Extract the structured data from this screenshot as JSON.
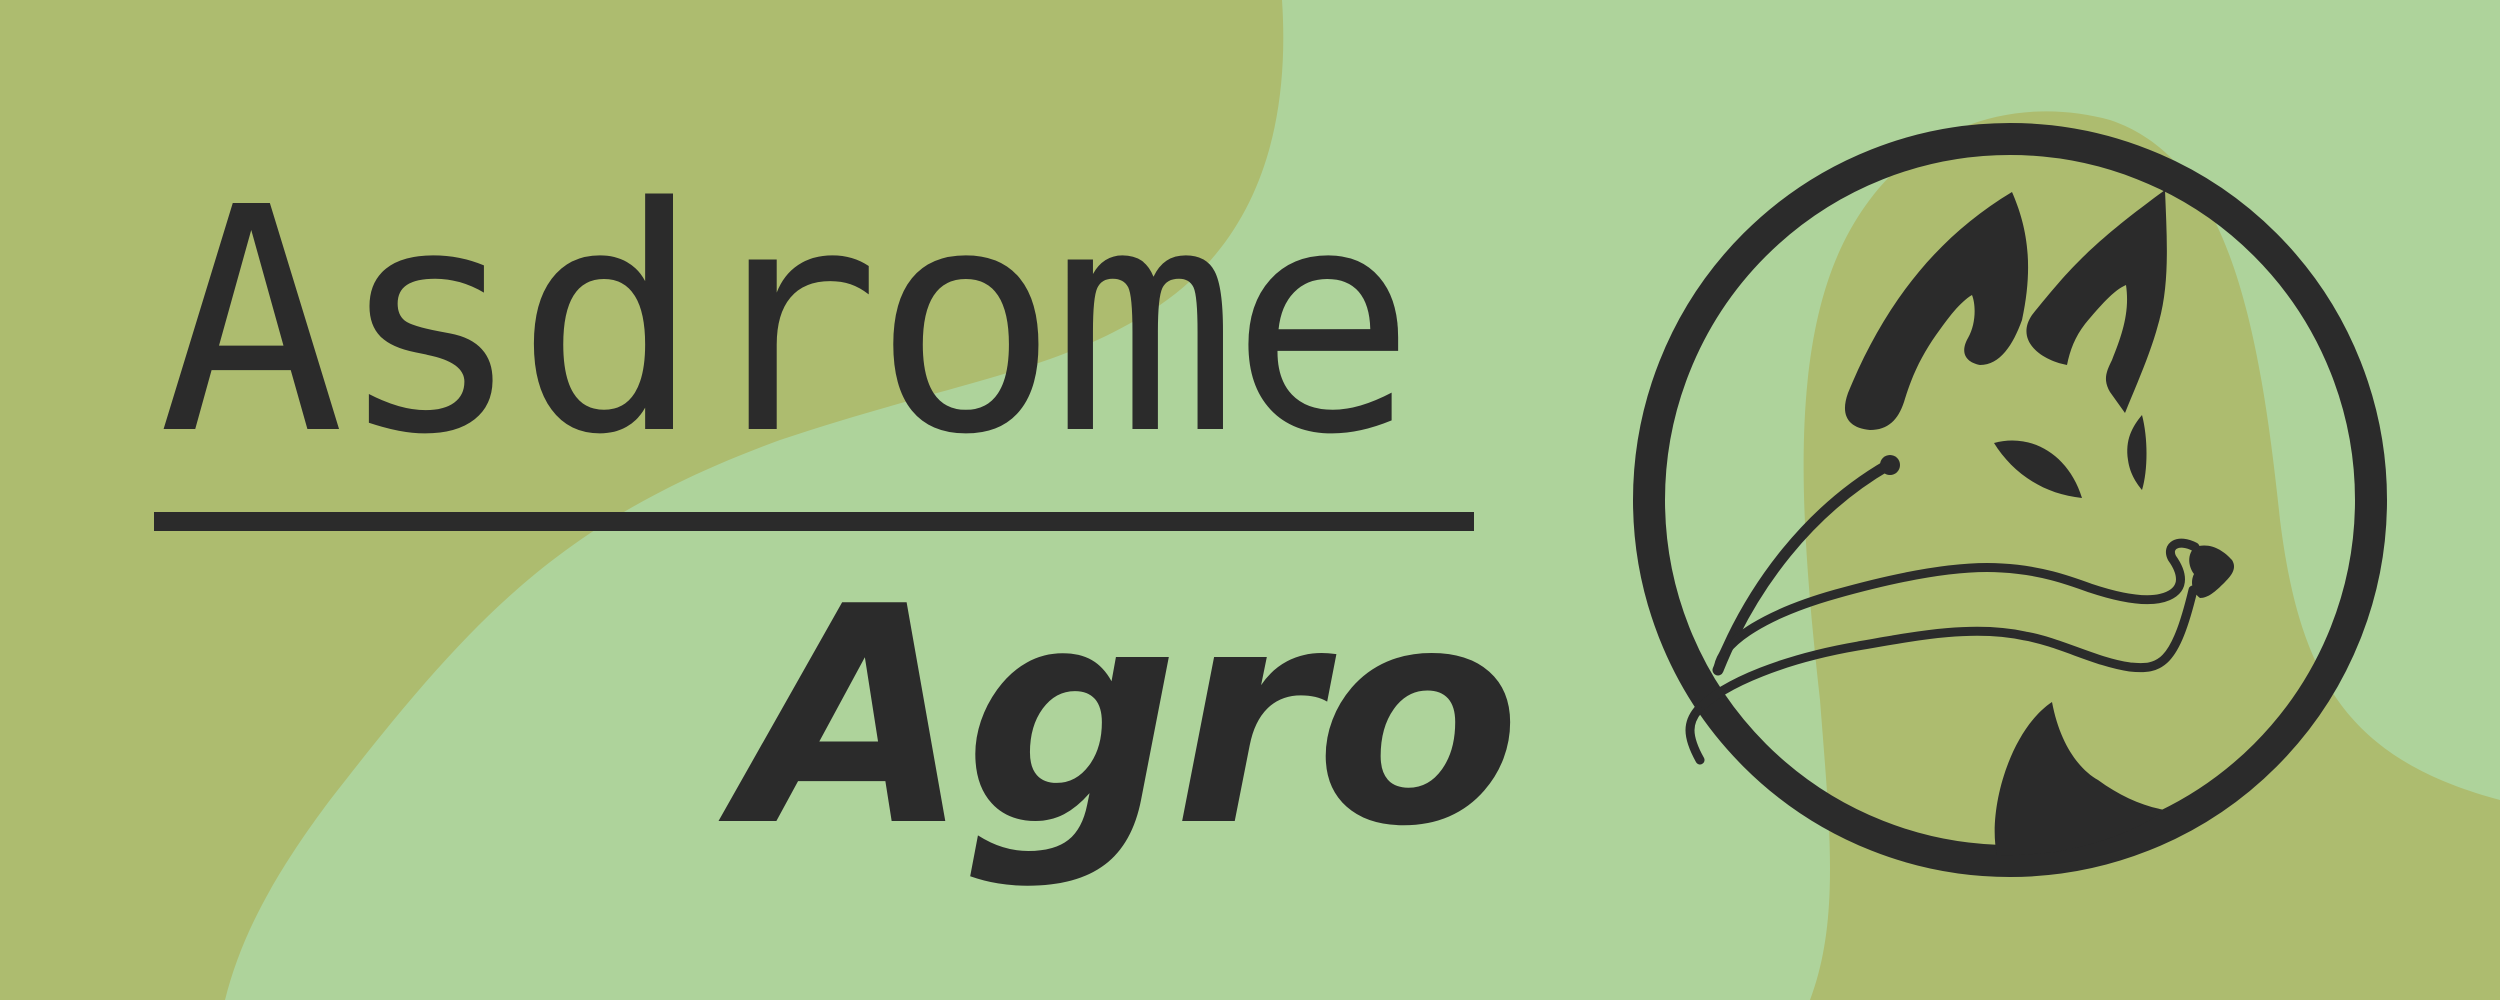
{
  "brand": {
    "title": "Asdrome",
    "subtitle": "Agro"
  },
  "emblem": {
    "icon": "fox-head-icon"
  },
  "colors": {
    "background_light_green": "#aed39b",
    "background_olive": "#adbc6f",
    "ink": "#2b2b2b"
  }
}
